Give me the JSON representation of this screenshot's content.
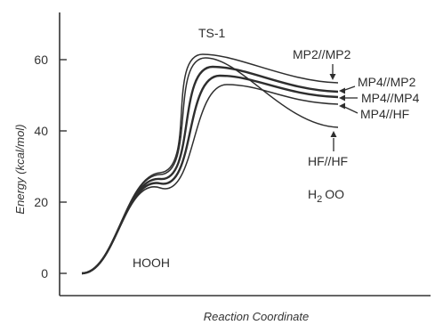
{
  "chart_data": {
    "type": "line",
    "title": "",
    "xlabel": "Reaction Coordinate",
    "ylabel": "Energy (kcal/mol)",
    "ylim": [
      -3,
      72
    ],
    "x_ticks_shown": false,
    "y_ticks": [
      0,
      20,
      40,
      60
    ],
    "y_tick_labels": [
      "0",
      "20",
      "40",
      "60"
    ],
    "series": [
      {
        "name": "MP2//MP2",
        "peak": 61.5,
        "product": 53.5
      },
      {
        "name": "MP4//MP2",
        "peak": 58.0,
        "product": 51.0
      },
      {
        "name": "MP4//MP4",
        "peak": 55.5,
        "product": 49.5
      },
      {
        "name": "MP4//HF",
        "peak": 53.0,
        "product": 47.5
      },
      {
        "name": "HF//HF",
        "peak": 60.5,
        "product": 41.0
      }
    ],
    "annotations": {
      "ts": "TS-1",
      "reactant": "HOOH",
      "product_prefix": "H",
      "product_sub": "2",
      "product_suffix": "OO"
    }
  }
}
